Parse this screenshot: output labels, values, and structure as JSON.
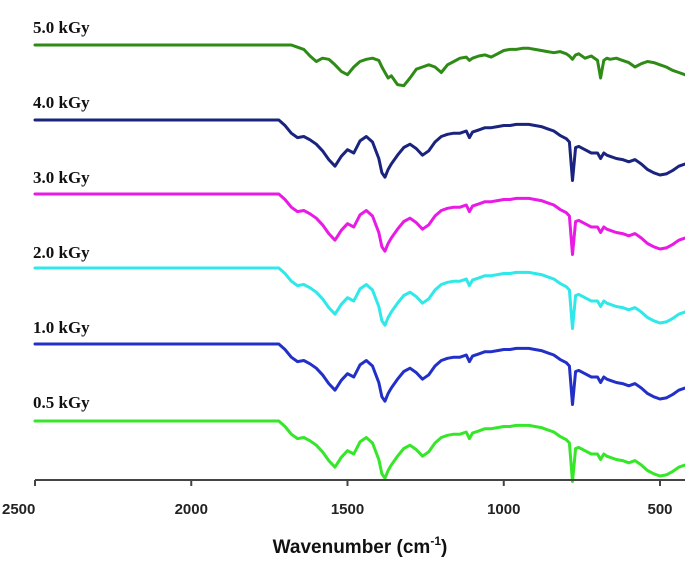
{
  "chart_data": {
    "type": "line",
    "title": "",
    "xlabel": "Wavenumber (cm",
    "xlabel_sup": "-1",
    "xlabel_close": ")",
    "ylabel": "",
    "xlim": [
      2500,
      420
    ],
    "x_ticks": [
      2500,
      2000,
      1500,
      1000,
      500
    ],
    "x_tick_labels": [
      "2500",
      "2000",
      "1500",
      "1000",
      "500"
    ],
    "y_axis_visible": false,
    "grid": false,
    "legend": "none",
    "series_label_placement": "left, above each trace",
    "x": [
      2500,
      2400,
      2300,
      2200,
      2100,
      2000,
      1900,
      1800,
      1750,
      1720,
      1700,
      1680,
      1660,
      1640,
      1620,
      1600,
      1580,
      1560,
      1540,
      1520,
      1500,
      1480,
      1460,
      1440,
      1420,
      1400,
      1390,
      1380,
      1370,
      1360,
      1340,
      1320,
      1300,
      1280,
      1260,
      1240,
      1220,
      1200,
      1180,
      1160,
      1140,
      1120,
      1110,
      1100,
      1080,
      1060,
      1040,
      1020,
      1000,
      980,
      960,
      940,
      920,
      900,
      880,
      860,
      840,
      820,
      800,
      790,
      780,
      770,
      760,
      740,
      720,
      700,
      690,
      680,
      670,
      660,
      640,
      620,
      600,
      580,
      560,
      540,
      520,
      500,
      480,
      460,
      440,
      420
    ],
    "series": [
      {
        "name": "5.0 kGy",
        "color": "#2e8b16",
        "values": [
          0.0,
          0.0,
          0.0,
          0.0,
          0.0,
          0.0,
          0.0,
          0.0,
          0.0,
          0.0,
          0.0,
          0.0,
          -0.02,
          -0.04,
          -0.1,
          -0.15,
          -0.12,
          -0.13,
          -0.18,
          -0.24,
          -0.27,
          -0.2,
          -0.15,
          -0.13,
          -0.12,
          -0.14,
          -0.2,
          -0.25,
          -0.3,
          -0.28,
          -0.36,
          -0.37,
          -0.3,
          -0.22,
          -0.2,
          -0.18,
          -0.2,
          -0.25,
          -0.18,
          -0.15,
          -0.12,
          -0.11,
          -0.14,
          -0.12,
          -0.1,
          -0.09,
          -0.11,
          -0.08,
          -0.05,
          -0.04,
          -0.04,
          -0.03,
          -0.03,
          -0.04,
          -0.05,
          -0.06,
          -0.07,
          -0.06,
          -0.08,
          -0.1,
          -0.13,
          -0.09,
          -0.08,
          -0.12,
          -0.1,
          -0.14,
          -0.3,
          -0.14,
          -0.12,
          -0.13,
          -0.12,
          -0.14,
          -0.16,
          -0.2,
          -0.17,
          -0.15,
          -0.16,
          -0.18,
          -0.2,
          -0.23,
          -0.25,
          -0.27
        ]
      },
      {
        "name": "4.0 kGy",
        "color": "#1a237e",
        "values": [
          0.0,
          0.0,
          0.0,
          0.0,
          0.0,
          0.0,
          0.0,
          0.0,
          0.0,
          0.0,
          -0.05,
          -0.12,
          -0.16,
          -0.15,
          -0.18,
          -0.22,
          -0.28,
          -0.36,
          -0.42,
          -0.33,
          -0.27,
          -0.3,
          -0.19,
          -0.15,
          -0.2,
          -0.35,
          -0.48,
          -0.52,
          -0.45,
          -0.4,
          -0.32,
          -0.25,
          -0.22,
          -0.26,
          -0.32,
          -0.28,
          -0.2,
          -0.15,
          -0.13,
          -0.12,
          -0.12,
          -0.1,
          -0.16,
          -0.11,
          -0.09,
          -0.07,
          -0.07,
          -0.06,
          -0.05,
          -0.05,
          -0.04,
          -0.04,
          -0.04,
          -0.05,
          -0.06,
          -0.08,
          -0.1,
          -0.14,
          -0.17,
          -0.2,
          -0.55,
          -0.25,
          -0.24,
          -0.27,
          -0.3,
          -0.3,
          -0.35,
          -0.3,
          -0.32,
          -0.33,
          -0.35,
          -0.36,
          -0.38,
          -0.36,
          -0.4,
          -0.45,
          -0.48,
          -0.5,
          -0.49,
          -0.46,
          -0.42,
          -0.4
        ]
      },
      {
        "name": "3.0 kGy",
        "color": "#e91ae5",
        "values": [
          0.0,
          0.0,
          0.0,
          0.0,
          0.0,
          0.0,
          0.0,
          0.0,
          0.0,
          0.0,
          -0.05,
          -0.12,
          -0.16,
          -0.15,
          -0.18,
          -0.22,
          -0.28,
          -0.36,
          -0.42,
          -0.33,
          -0.27,
          -0.3,
          -0.19,
          -0.15,
          -0.2,
          -0.35,
          -0.48,
          -0.52,
          -0.45,
          -0.4,
          -0.32,
          -0.25,
          -0.22,
          -0.26,
          -0.32,
          -0.28,
          -0.2,
          -0.15,
          -0.13,
          -0.12,
          -0.12,
          -0.1,
          -0.16,
          -0.11,
          -0.09,
          -0.07,
          -0.07,
          -0.06,
          -0.05,
          -0.05,
          -0.04,
          -0.04,
          -0.04,
          -0.05,
          -0.06,
          -0.08,
          -0.1,
          -0.14,
          -0.17,
          -0.2,
          -0.55,
          -0.25,
          -0.24,
          -0.27,
          -0.3,
          -0.3,
          -0.35,
          -0.3,
          -0.32,
          -0.33,
          -0.35,
          -0.36,
          -0.38,
          -0.36,
          -0.4,
          -0.45,
          -0.48,
          -0.5,
          -0.49,
          -0.46,
          -0.42,
          -0.4
        ]
      },
      {
        "name": "2.0 kGy",
        "color": "#2ee8ea",
        "values": [
          0.0,
          0.0,
          0.0,
          0.0,
          0.0,
          0.0,
          0.0,
          0.0,
          0.0,
          0.0,
          -0.05,
          -0.12,
          -0.16,
          -0.15,
          -0.18,
          -0.22,
          -0.28,
          -0.36,
          -0.42,
          -0.33,
          -0.27,
          -0.3,
          -0.19,
          -0.15,
          -0.2,
          -0.35,
          -0.48,
          -0.52,
          -0.45,
          -0.4,
          -0.32,
          -0.25,
          -0.22,
          -0.26,
          -0.32,
          -0.28,
          -0.2,
          -0.15,
          -0.13,
          -0.12,
          -0.12,
          -0.1,
          -0.16,
          -0.11,
          -0.09,
          -0.07,
          -0.07,
          -0.06,
          -0.05,
          -0.05,
          -0.04,
          -0.04,
          -0.04,
          -0.05,
          -0.06,
          -0.08,
          -0.1,
          -0.14,
          -0.17,
          -0.2,
          -0.55,
          -0.25,
          -0.24,
          -0.27,
          -0.3,
          -0.3,
          -0.35,
          -0.3,
          -0.32,
          -0.33,
          -0.35,
          -0.36,
          -0.38,
          -0.36,
          -0.4,
          -0.45,
          -0.48,
          -0.5,
          -0.49,
          -0.46,
          -0.42,
          -0.4
        ]
      },
      {
        "name": "1.0 kGy",
        "color": "#2330c8",
        "values": [
          0.0,
          0.0,
          0.0,
          0.0,
          0.0,
          0.0,
          0.0,
          0.0,
          0.0,
          0.0,
          -0.05,
          -0.12,
          -0.16,
          -0.15,
          -0.18,
          -0.22,
          -0.28,
          -0.36,
          -0.42,
          -0.33,
          -0.27,
          -0.3,
          -0.19,
          -0.15,
          -0.2,
          -0.35,
          -0.48,
          -0.52,
          -0.45,
          -0.4,
          -0.32,
          -0.25,
          -0.22,
          -0.26,
          -0.32,
          -0.28,
          -0.2,
          -0.15,
          -0.13,
          -0.12,
          -0.12,
          -0.1,
          -0.16,
          -0.11,
          -0.09,
          -0.07,
          -0.07,
          -0.06,
          -0.05,
          -0.05,
          -0.04,
          -0.04,
          -0.04,
          -0.05,
          -0.06,
          -0.08,
          -0.1,
          -0.14,
          -0.17,
          -0.2,
          -0.55,
          -0.25,
          -0.24,
          -0.27,
          -0.3,
          -0.3,
          -0.35,
          -0.3,
          -0.32,
          -0.33,
          -0.35,
          -0.36,
          -0.38,
          -0.36,
          -0.4,
          -0.45,
          -0.48,
          -0.5,
          -0.49,
          -0.46,
          -0.42,
          -0.4
        ]
      },
      {
        "name": "0.5 kGy",
        "color": "#35e629",
        "values": [
          0.0,
          0.0,
          0.0,
          0.0,
          0.0,
          0.0,
          0.0,
          0.0,
          0.0,
          0.0,
          -0.05,
          -0.12,
          -0.16,
          -0.15,
          -0.18,
          -0.22,
          -0.28,
          -0.36,
          -0.42,
          -0.33,
          -0.27,
          -0.3,
          -0.19,
          -0.15,
          -0.2,
          -0.35,
          -0.48,
          -0.52,
          -0.45,
          -0.4,
          -0.32,
          -0.25,
          -0.22,
          -0.26,
          -0.32,
          -0.28,
          -0.2,
          -0.15,
          -0.13,
          -0.12,
          -0.12,
          -0.1,
          -0.16,
          -0.11,
          -0.09,
          -0.07,
          -0.07,
          -0.06,
          -0.05,
          -0.05,
          -0.04,
          -0.04,
          -0.04,
          -0.05,
          -0.06,
          -0.08,
          -0.1,
          -0.14,
          -0.17,
          -0.2,
          -0.55,
          -0.25,
          -0.24,
          -0.27,
          -0.3,
          -0.3,
          -0.35,
          -0.3,
          -0.32,
          -0.33,
          -0.35,
          -0.36,
          -0.38,
          -0.36,
          -0.4,
          -0.45,
          -0.48,
          -0.5,
          -0.49,
          -0.46,
          -0.42,
          -0.4
        ]
      }
    ]
  }
}
